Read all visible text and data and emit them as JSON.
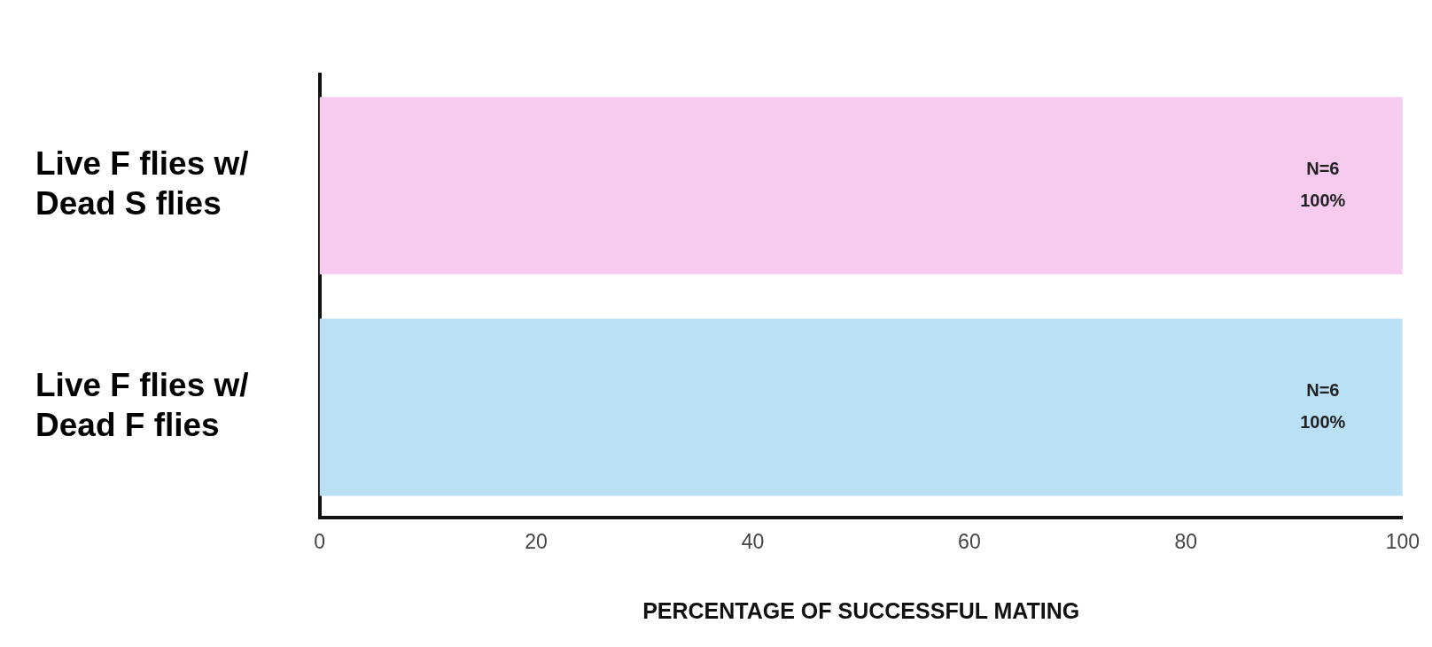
{
  "chart_data": {
    "type": "bar",
    "orientation": "horizontal",
    "categories": [
      "Live F flies w/\nDead S flies",
      "Live F flies w/\nDead F flies"
    ],
    "values": [
      100,
      100
    ],
    "colors": [
      "#f6cbef",
      "#b9e0f5"
    ],
    "value_labels": [
      "100%",
      "100%"
    ],
    "annotations": [
      "N=6",
      "N=6"
    ],
    "xlabel": "PERCENTAGE OF SUCCESSFUL MATING",
    "xlim": [
      0,
      100
    ],
    "xticks": [
      0,
      20,
      40,
      60,
      80,
      100
    ],
    "grid": false,
    "legend": false
  }
}
